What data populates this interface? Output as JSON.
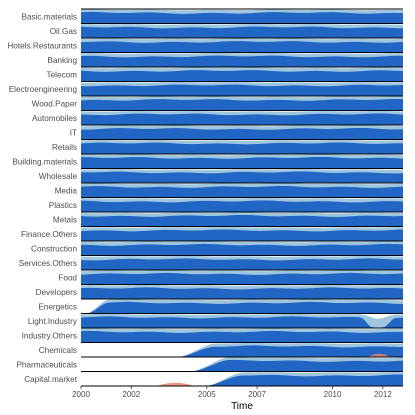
{
  "chart_data": {
    "type": "area",
    "title": "",
    "xlabel": "Time",
    "ylabel": "",
    "xlim": [
      2000,
      2012.8
    ],
    "x_ticks": [
      2000,
      2002,
      2005,
      2007,
      2010,
      2012
    ],
    "x_tick_labels": [
      "2000",
      "2002",
      "2005",
      "2007",
      "2010",
      "2012"
    ],
    "grid": false,
    "legend": "none",
    "colors": {
      "dark": "#2166c4",
      "light": "#9fc6df",
      "negative": "#e8836a",
      "divider": "#000000"
    },
    "rows": [
      {
        "label": "Basic.materials",
        "start": 2000.0,
        "ramp": 0.0,
        "trough": null,
        "neg": null
      },
      {
        "label": "Oil.Gas",
        "start": 2000.0,
        "ramp": 0.0,
        "trough": null,
        "neg": null
      },
      {
        "label": "Hotels.Restaurants",
        "start": 2000.0,
        "ramp": 0.0,
        "trough": null,
        "neg": null
      },
      {
        "label": "Banking",
        "start": 2000.0,
        "ramp": 0.0,
        "trough": null,
        "neg": null
      },
      {
        "label": "Telecom",
        "start": 2000.0,
        "ramp": 0.0,
        "trough": null,
        "neg": null
      },
      {
        "label": "Electroengineering",
        "start": 2000.0,
        "ramp": 0.0,
        "trough": null,
        "neg": null
      },
      {
        "label": "Wood.Paper",
        "start": 2000.0,
        "ramp": 0.0,
        "trough": null,
        "neg": null
      },
      {
        "label": "Automobiles",
        "start": 2000.0,
        "ramp": 0.0,
        "trough": null,
        "neg": null
      },
      {
        "label": "IT",
        "start": 2000.0,
        "ramp": 0.0,
        "trough": null,
        "neg": null
      },
      {
        "label": "Retails",
        "start": 2000.0,
        "ramp": 0.0,
        "trough": null,
        "neg": null
      },
      {
        "label": "Building.materials",
        "start": 2000.0,
        "ramp": 0.0,
        "trough": null,
        "neg": null
      },
      {
        "label": "Wholesale",
        "start": 2000.0,
        "ramp": 0.0,
        "trough": null,
        "neg": null
      },
      {
        "label": "Media",
        "start": 2000.0,
        "ramp": 0.0,
        "trough": null,
        "neg": null
      },
      {
        "label": "Plastics",
        "start": 2000.0,
        "ramp": 0.0,
        "trough": null,
        "neg": null
      },
      {
        "label": "Metals",
        "start": 2000.0,
        "ramp": 0.0,
        "trough": null,
        "neg": null
      },
      {
        "label": "Finance.Others",
        "start": 2000.0,
        "ramp": 0.0,
        "trough": null,
        "neg": null
      },
      {
        "label": "Construction",
        "start": 2000.0,
        "ramp": 0.0,
        "trough": null,
        "neg": null
      },
      {
        "label": "Services.Others",
        "start": 2000.0,
        "ramp": 0.0,
        "trough": null,
        "neg": null
      },
      {
        "label": "Food",
        "start": 2000.0,
        "ramp": 0.0,
        "trough": null,
        "neg": null
      },
      {
        "label": "Developers",
        "start": 2000.0,
        "ramp": 0.0,
        "trough": null,
        "neg": null
      },
      {
        "label": "Energetics",
        "start": 2000.2,
        "ramp": 0.9,
        "trough": null,
        "neg": null
      },
      {
        "label": "Light.Industry",
        "start": 2000.0,
        "ramp": 0.0,
        "trough": [
          2011.1,
          2012.5
        ],
        "neg": null
      },
      {
        "label": "Industry.Others",
        "start": 2000.0,
        "ramp": 0.0,
        "trough": null,
        "neg": null
      },
      {
        "label": "Chemicals",
        "start": 2003.8,
        "ramp": 1.6,
        "trough": null,
        "neg": [
          2011.4,
          2012.3
        ]
      },
      {
        "label": "Pharmaceuticals",
        "start": 2004.3,
        "ramp": 1.6,
        "trough": null,
        "neg": null
      },
      {
        "label": "Capital.market",
        "start": 2004.9,
        "ramp": 1.6,
        "trough": null,
        "neg": [
          2003.0,
          2004.5
        ]
      }
    ]
  }
}
